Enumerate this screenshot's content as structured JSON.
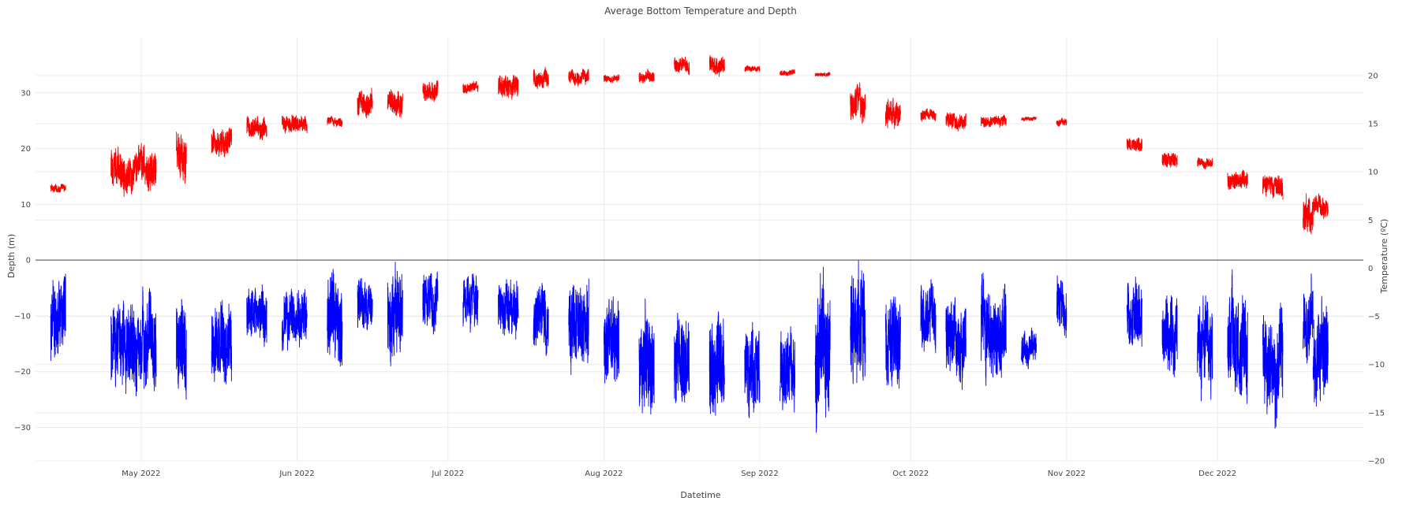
{
  "chart_data": {
    "type": "line",
    "title": "Average Bottom Temperature and Depth",
    "xlabel": "Datetime",
    "ylabel_left": "Depth (m)",
    "ylabel_right": "Temperature (ºC)",
    "x_range": [
      "2022-04-10",
      "2022-12-30"
    ],
    "ylim_left": [
      -36,
      40
    ],
    "ylim_right": [
      -20,
      24
    ],
    "grid": true,
    "legend": "none",
    "x_ticks": [
      {
        "date": "2022-05-01",
        "label": "May 2022"
      },
      {
        "date": "2022-06-01",
        "label": "Jun 2022"
      },
      {
        "date": "2022-07-01",
        "label": "Jul 2022"
      },
      {
        "date": "2022-08-01",
        "label": "Aug 2022"
      },
      {
        "date": "2022-09-01",
        "label": "Sep 2022"
      },
      {
        "date": "2022-10-01",
        "label": "Oct 2022"
      },
      {
        "date": "2022-11-01",
        "label": "Nov 2022"
      },
      {
        "date": "2022-12-01",
        "label": "Dec 2022"
      }
    ],
    "y_ticks_left": [
      -30,
      -20,
      -10,
      0,
      10,
      20,
      30
    ],
    "y_ticks_right": [
      -20,
      -15,
      -10,
      -5,
      0,
      5,
      10,
      15,
      20
    ],
    "series": [
      {
        "name": "Temperature",
        "axis": "right",
        "color": "#ff0000",
        "segments": [
          {
            "start": "2022-04-13",
            "end": "2022-04-16",
            "mean": 8.3,
            "spread": 0.4
          },
          {
            "start": "2022-04-25",
            "end": "2022-05-04",
            "mean": 10.2,
            "spread": 2.0
          },
          {
            "start": "2022-05-08",
            "end": "2022-05-10",
            "mean": 11.8,
            "spread": 2.5
          },
          {
            "start": "2022-05-15",
            "end": "2022-05-19",
            "mean": 13.0,
            "spread": 1.5
          },
          {
            "start": "2022-05-22",
            "end": "2022-05-26",
            "mean": 14.6,
            "spread": 1.2
          },
          {
            "start": "2022-05-29",
            "end": "2022-06-03",
            "mean": 15.0,
            "spread": 0.9
          },
          {
            "start": "2022-06-07",
            "end": "2022-06-10",
            "mean": 15.3,
            "spread": 0.5
          },
          {
            "start": "2022-06-13",
            "end": "2022-06-16",
            "mean": 16.8,
            "spread": 1.4
          },
          {
            "start": "2022-06-19",
            "end": "2022-06-22",
            "mean": 17.2,
            "spread": 1.4
          },
          {
            "start": "2022-06-26",
            "end": "2022-06-29",
            "mean": 18.4,
            "spread": 1.1
          },
          {
            "start": "2022-07-04",
            "end": "2022-07-07",
            "mean": 18.8,
            "spread": 0.6
          },
          {
            "start": "2022-07-11",
            "end": "2022-07-15",
            "mean": 18.9,
            "spread": 1.2
          },
          {
            "start": "2022-07-18",
            "end": "2022-07-21",
            "mean": 19.6,
            "spread": 0.9
          },
          {
            "start": "2022-07-25",
            "end": "2022-07-29",
            "mean": 19.8,
            "spread": 0.8
          },
          {
            "start": "2022-08-01",
            "end": "2022-08-04",
            "mean": 19.7,
            "spread": 0.4
          },
          {
            "start": "2022-08-08",
            "end": "2022-08-11",
            "mean": 19.9,
            "spread": 0.6
          },
          {
            "start": "2022-08-15",
            "end": "2022-08-18",
            "mean": 21.1,
            "spread": 0.8
          },
          {
            "start": "2022-08-22",
            "end": "2022-08-25",
            "mean": 21.2,
            "spread": 1.0
          },
          {
            "start": "2022-08-29",
            "end": "2022-09-01",
            "mean": 20.7,
            "spread": 0.3
          },
          {
            "start": "2022-09-05",
            "end": "2022-09-08",
            "mean": 20.3,
            "spread": 0.3
          },
          {
            "start": "2022-09-12",
            "end": "2022-09-15",
            "mean": 20.1,
            "spread": 0.2
          },
          {
            "start": "2022-09-19",
            "end": "2022-09-22",
            "mean": 17.0,
            "spread": 1.8
          },
          {
            "start": "2022-09-26",
            "end": "2022-09-29",
            "mean": 16.3,
            "spread": 1.4
          },
          {
            "start": "2022-10-03",
            "end": "2022-10-06",
            "mean": 16.0,
            "spread": 0.6
          },
          {
            "start": "2022-10-08",
            "end": "2022-10-12",
            "mean": 15.3,
            "spread": 0.9
          },
          {
            "start": "2022-10-15",
            "end": "2022-10-20",
            "mean": 15.2,
            "spread": 0.6
          },
          {
            "start": "2022-10-23",
            "end": "2022-10-26",
            "mean": 15.5,
            "spread": 0.2
          },
          {
            "start": "2022-10-30",
            "end": "2022-11-01",
            "mean": 15.2,
            "spread": 0.4
          },
          {
            "start": "2022-11-13",
            "end": "2022-11-16",
            "mean": 12.9,
            "spread": 0.8
          },
          {
            "start": "2022-11-20",
            "end": "2022-11-23",
            "mean": 11.3,
            "spread": 0.8
          },
          {
            "start": "2022-11-27",
            "end": "2022-11-30",
            "mean": 11.0,
            "spread": 0.5
          },
          {
            "start": "2022-12-03",
            "end": "2022-12-07",
            "mean": 9.2,
            "spread": 1.0
          },
          {
            "start": "2022-12-10",
            "end": "2022-12-14",
            "mean": 8.5,
            "spread": 1.2
          },
          {
            "start": "2022-12-18",
            "end": "2022-12-20",
            "mean": 5.5,
            "spread": 2.0
          },
          {
            "start": "2022-12-20",
            "end": "2022-12-23",
            "mean": 6.5,
            "spread": 1.2
          }
        ]
      },
      {
        "name": "Depth",
        "axis": "left",
        "color": "#0000ff",
        "segments": [
          {
            "start": "2022-04-13",
            "end": "2022-04-16",
            "mean": -11,
            "spread": 7
          },
          {
            "start": "2022-04-25",
            "end": "2022-05-04",
            "mean": -15,
            "spread": 8
          },
          {
            "start": "2022-05-08",
            "end": "2022-05-10",
            "mean": -15,
            "spread": 9
          },
          {
            "start": "2022-05-15",
            "end": "2022-05-19",
            "mean": -16,
            "spread": 7
          },
          {
            "start": "2022-05-22",
            "end": "2022-05-26",
            "mean": -9,
            "spread": 5
          },
          {
            "start": "2022-05-29",
            "end": "2022-06-03",
            "mean": -11,
            "spread": 5
          },
          {
            "start": "2022-06-07",
            "end": "2022-06-10",
            "mean": -11,
            "spread": 8
          },
          {
            "start": "2022-06-13",
            "end": "2022-06-16",
            "mean": -8,
            "spread": 5
          },
          {
            "start": "2022-06-19",
            "end": "2022-06-22",
            "mean": -10,
            "spread": 8
          },
          {
            "start": "2022-06-26",
            "end": "2022-06-29",
            "mean": -7,
            "spread": 5
          },
          {
            "start": "2022-07-04",
            "end": "2022-07-07",
            "mean": -8,
            "spread": 5
          },
          {
            "start": "2022-07-11",
            "end": "2022-07-15",
            "mean": -9,
            "spread": 5
          },
          {
            "start": "2022-07-18",
            "end": "2022-07-21",
            "mean": -11,
            "spread": 6
          },
          {
            "start": "2022-07-25",
            "end": "2022-07-29",
            "mean": -11,
            "spread": 8
          },
          {
            "start": "2022-08-01",
            "end": "2022-08-04",
            "mean": -16,
            "spread": 8
          },
          {
            "start": "2022-08-08",
            "end": "2022-08-11",
            "mean": -19,
            "spread": 9
          },
          {
            "start": "2022-08-15",
            "end": "2022-08-18",
            "mean": -17,
            "spread": 8
          },
          {
            "start": "2022-08-22",
            "end": "2022-08-25",
            "mean": -19,
            "spread": 9
          },
          {
            "start": "2022-08-29",
            "end": "2022-09-01",
            "mean": -19,
            "spread": 8
          },
          {
            "start": "2022-09-05",
            "end": "2022-09-08",
            "mean": -20,
            "spread": 7
          },
          {
            "start": "2022-09-12",
            "end": "2022-09-15",
            "mean": -15,
            "spread": 12
          },
          {
            "start": "2022-09-19",
            "end": "2022-09-22",
            "mean": -14,
            "spread": 11
          },
          {
            "start": "2022-09-26",
            "end": "2022-09-29",
            "mean": -15,
            "spread": 8
          },
          {
            "start": "2022-10-03",
            "end": "2022-10-06",
            "mean": -10,
            "spread": 6
          },
          {
            "start": "2022-10-08",
            "end": "2022-10-12",
            "mean": -13,
            "spread": 7
          },
          {
            "start": "2022-10-15",
            "end": "2022-10-20",
            "mean": -12,
            "spread": 8
          },
          {
            "start": "2022-10-23",
            "end": "2022-10-26",
            "mean": -16,
            "spread": 3
          },
          {
            "start": "2022-10-30",
            "end": "2022-11-01",
            "mean": -9,
            "spread": 5
          },
          {
            "start": "2022-11-13",
            "end": "2022-11-16",
            "mean": -10,
            "spread": 6
          },
          {
            "start": "2022-11-20",
            "end": "2022-11-23",
            "mean": -14,
            "spread": 7
          },
          {
            "start": "2022-11-27",
            "end": "2022-11-30",
            "mean": -15,
            "spread": 8
          },
          {
            "start": "2022-12-03",
            "end": "2022-12-07",
            "mean": -16,
            "spread": 9
          },
          {
            "start": "2022-12-10",
            "end": "2022-12-14",
            "mean": -18,
            "spread": 9
          },
          {
            "start": "2022-12-18",
            "end": "2022-12-20",
            "mean": -11,
            "spread": 6
          },
          {
            "start": "2022-12-20",
            "end": "2022-12-23",
            "mean": -16,
            "spread": 9
          }
        ]
      }
    ]
  }
}
